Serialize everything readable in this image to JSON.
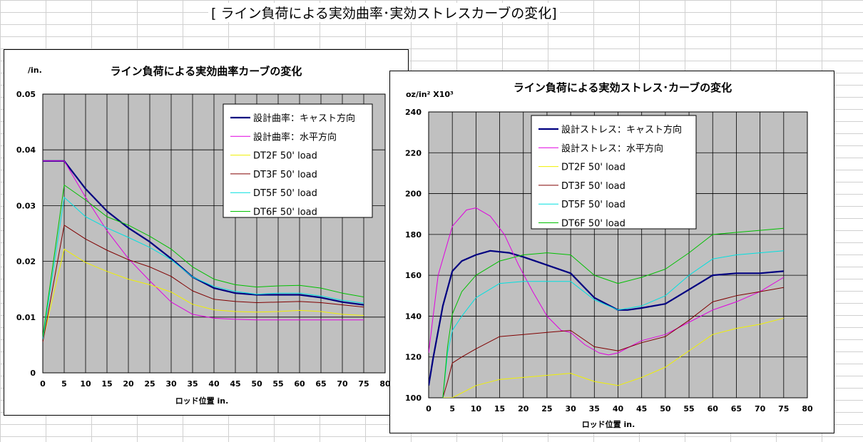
{
  "sheet": {
    "title": "[ ライン負荷による実効曲率･実効ストレスカーブの変化]"
  },
  "chart_data": [
    {
      "type": "line",
      "title": "ライン負荷による実効曲率カーブの変化",
      "ylabel": "/in.",
      "xlabel": "ロッド位置 in.",
      "xlim": [
        0,
        80
      ],
      "ylim": [
        0,
        0.05
      ],
      "x_ticks": [
        "0",
        "5",
        "10",
        "15",
        "20",
        "25",
        "30",
        "35",
        "40",
        "45",
        "50",
        "55",
        "60",
        "65",
        "70",
        "75",
        "80"
      ],
      "y_ticks": [
        "0",
        "0.01",
        "0.02",
        "0.03",
        "0.04",
        "0.05"
      ],
      "grid": true,
      "legend_position": "top-right",
      "series": [
        {
          "name": "設計曲率：キャスト方向",
          "color": "#000080",
          "width": 2.2,
          "x": [
            0,
            5,
            10,
            15,
            20,
            25,
            30,
            35,
            40,
            45,
            50,
            55,
            60,
            65,
            70,
            75
          ],
          "y": [
            0.038,
            0.038,
            0.033,
            0.029,
            0.026,
            0.0235,
            0.0205,
            0.0172,
            0.0152,
            0.0143,
            0.014,
            0.014,
            0.014,
            0.0135,
            0.0127,
            0.0122
          ]
        },
        {
          "name": "設計曲率：水平方向",
          "color": "#e000e0",
          "width": 1,
          "x": [
            0,
            5,
            10,
            15,
            20,
            25,
            30,
            35,
            40,
            45,
            50,
            55,
            60,
            65,
            70,
            75
          ],
          "y": [
            0.038,
            0.038,
            0.0315,
            0.0255,
            0.0205,
            0.0165,
            0.0127,
            0.0105,
            0.0098,
            0.0096,
            0.0095,
            0.0095,
            0.0095,
            0.0095,
            0.0095,
            0.0095
          ]
        },
        {
          "name": "DT2F 50' load",
          "color": "#f0f000",
          "width": 1,
          "x": [
            0,
            5,
            10,
            15,
            20,
            25,
            30,
            35,
            40,
            45,
            50,
            55,
            60,
            65,
            70,
            75
          ],
          "y": [
            0.0058,
            0.0222,
            0.0198,
            0.0182,
            0.0168,
            0.0158,
            0.0145,
            0.0123,
            0.0113,
            0.011,
            0.0109,
            0.011,
            0.0112,
            0.011,
            0.0105,
            0.0103
          ]
        },
        {
          "name": "DT3F 50' load",
          "color": "#800000",
          "width": 1,
          "x": [
            0,
            5,
            10,
            15,
            20,
            25,
            30,
            35,
            40,
            45,
            50,
            55,
            60,
            65,
            70,
            75
          ],
          "y": [
            0.0055,
            0.0265,
            0.024,
            0.022,
            0.0203,
            0.019,
            0.0173,
            0.0147,
            0.0132,
            0.0128,
            0.0126,
            0.0127,
            0.0128,
            0.0126,
            0.0122,
            0.0118
          ]
        },
        {
          "name": "DT5F 50' load",
          "color": "#00e0e0",
          "width": 1,
          "x": [
            0,
            5,
            10,
            15,
            20,
            25,
            30,
            35,
            40,
            45,
            50,
            55,
            60,
            65,
            70,
            75
          ],
          "y": [
            0.006,
            0.0315,
            0.028,
            0.026,
            0.0243,
            0.0225,
            0.0203,
            0.0172,
            0.0155,
            0.0146,
            0.0141,
            0.0143,
            0.0143,
            0.0138,
            0.013,
            0.0125
          ]
        },
        {
          "name": "DT6F 50' load",
          "color": "#00c000",
          "width": 1,
          "x": [
            0,
            5,
            10,
            15,
            20,
            25,
            30,
            35,
            40,
            45,
            50,
            55,
            60,
            65,
            70,
            75
          ],
          "y": [
            0.0065,
            0.0337,
            0.031,
            0.028,
            0.0265,
            0.0245,
            0.0222,
            0.019,
            0.0168,
            0.0158,
            0.0154,
            0.0156,
            0.0157,
            0.0152,
            0.0143,
            0.0136
          ]
        }
      ]
    },
    {
      "type": "line",
      "title": "ライン負荷による実効ストレス･カーブの変化",
      "ylabel": "oz/in² X10³",
      "xlabel": "ロッド位置 in.",
      "xlim": [
        0,
        80
      ],
      "ylim": [
        100,
        240
      ],
      "x_ticks": [
        "0",
        "5",
        "10",
        "15",
        "20",
        "25",
        "30",
        "35",
        "40",
        "45",
        "50",
        "55",
        "60",
        "65",
        "70",
        "75",
        "80"
      ],
      "y_ticks": [
        "100",
        "120",
        "140",
        "160",
        "180",
        "200",
        "220",
        "240"
      ],
      "grid": true,
      "legend_position": "top-center",
      "series": [
        {
          "name": "設計ストレス：キャスト方向",
          "color": "#000080",
          "width": 2.2,
          "x": [
            0,
            1,
            3,
            5,
            7,
            10,
            13,
            17,
            20,
            25,
            30,
            35,
            40,
            42,
            45,
            50,
            55,
            60,
            65,
            70,
            75
          ],
          "y": [
            106,
            120,
            145,
            162,
            167,
            170,
            172,
            171,
            169,
            165,
            161,
            149,
            143,
            143,
            144,
            146,
            153,
            160,
            161,
            161,
            162
          ]
        },
        {
          "name": "設計ストレス：水平方向",
          "color": "#e000e0",
          "width": 1,
          "x": [
            0,
            2,
            5,
            8,
            10,
            13,
            16,
            19,
            22,
            25,
            28,
            30,
            33,
            36,
            38,
            40,
            45,
            50,
            55,
            60,
            65,
            70,
            75
          ],
          "y": [
            122,
            160,
            184,
            192,
            193,
            189,
            180,
            165,
            152,
            140,
            133,
            132,
            126,
            122,
            121,
            122,
            128,
            131,
            137,
            143,
            147,
            152,
            159
          ]
        },
        {
          "name": "DT2F 50' load",
          "color": "#f0f000",
          "width": 1,
          "x": [
            3,
            5,
            10,
            15,
            20,
            25,
            30,
            35,
            40,
            45,
            50,
            55,
            60,
            65,
            70,
            75
          ],
          "y": [
            100,
            100,
            106,
            109,
            110,
            111,
            112,
            108,
            106,
            110,
            115,
            123,
            131,
            134,
            136,
            139
          ]
        },
        {
          "name": "DT3F 50' load",
          "color": "#800000",
          "width": 1,
          "x": [
            3,
            4,
            5,
            7,
            10,
            15,
            20,
            25,
            30,
            35,
            40,
            45,
            50,
            55,
            60,
            65,
            70,
            75
          ],
          "y": [
            100,
            108,
            117,
            120,
            124,
            130,
            131,
            132,
            133,
            125,
            123,
            127,
            130,
            138,
            147,
            150,
            152,
            154
          ]
        },
        {
          "name": "DT5F 50' load",
          "color": "#00e0e0",
          "width": 1,
          "x": [
            3,
            4,
            5,
            7,
            10,
            15,
            20,
            25,
            30,
            35,
            40,
            45,
            50,
            55,
            60,
            65,
            70,
            75
          ],
          "y": [
            100,
            122,
            133,
            140,
            149,
            156,
            157,
            157,
            157,
            148,
            143,
            145,
            150,
            160,
            168,
            170,
            171,
            172
          ]
        },
        {
          "name": "DT6F 50' load",
          "color": "#00c000",
          "width": 1,
          "x": [
            3,
            4,
            5,
            7,
            10,
            15,
            20,
            25,
            30,
            35,
            40,
            45,
            50,
            55,
            60,
            65,
            70,
            75
          ],
          "y": [
            100,
            125,
            141,
            152,
            160,
            167,
            170,
            171,
            170,
            160,
            156,
            159,
            163,
            171,
            180,
            181,
            182,
            183
          ]
        }
      ]
    }
  ]
}
